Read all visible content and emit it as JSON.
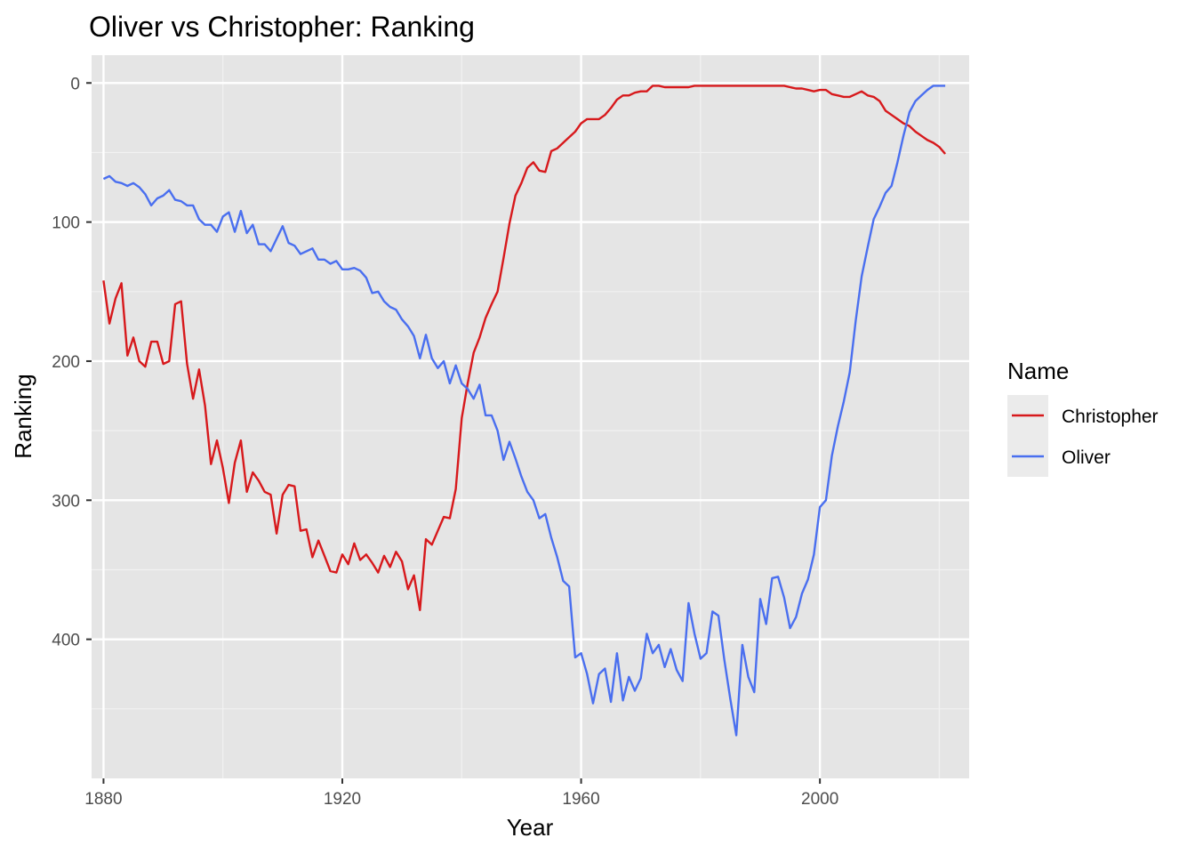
{
  "chart_data": {
    "type": "line",
    "title": "Oliver vs Christopher: Ranking",
    "xlabel": "Year",
    "ylabel": "Ranking",
    "xlim": [
      1878,
      2025
    ],
    "ylim": [
      0,
      490
    ],
    "y_reversed": true,
    "x_ticks": [
      "1880",
      "1920",
      "1960",
      "2000"
    ],
    "y_ticks": [
      "0",
      "100",
      "200",
      "300",
      "400"
    ],
    "grid": true,
    "legend": {
      "title": "Name",
      "position": "right"
    },
    "series": [
      {
        "name": "Christopher",
        "color": "#d7191c",
        "x": [
          1880,
          1881,
          1882,
          1883,
          1884,
          1885,
          1886,
          1887,
          1888,
          1889,
          1890,
          1891,
          1892,
          1893,
          1894,
          1895,
          1896,
          1897,
          1898,
          1899,
          1900,
          1901,
          1902,
          1903,
          1904,
          1905,
          1906,
          1907,
          1908,
          1909,
          1910,
          1911,
          1912,
          1913,
          1914,
          1915,
          1916,
          1917,
          1918,
          1919,
          1920,
          1921,
          1922,
          1923,
          1924,
          1925,
          1926,
          1927,
          1928,
          1929,
          1930,
          1931,
          1932,
          1933,
          1934,
          1935,
          1936,
          1937,
          1938,
          1939,
          1940,
          1941,
          1942,
          1943,
          1944,
          1945,
          1946,
          1947,
          1948,
          1949,
          1950,
          1951,
          1952,
          1953,
          1954,
          1955,
          1956,
          1957,
          1958,
          1959,
          1960,
          1961,
          1962,
          1963,
          1964,
          1965,
          1966,
          1967,
          1968,
          1969,
          1970,
          1971,
          1972,
          1973,
          1974,
          1975,
          1976,
          1977,
          1978,
          1979,
          1980,
          1981,
          1982,
          1983,
          1984,
          1985,
          1986,
          1987,
          1988,
          1989,
          1990,
          1991,
          1992,
          1993,
          1994,
          1995,
          1996,
          1997,
          1998,
          1999,
          2000,
          2001,
          2002,
          2003,
          2004,
          2005,
          2006,
          2007,
          2008,
          2009,
          2010,
          2011,
          2012,
          2013,
          2014,
          2015,
          2016,
          2017,
          2018,
          2019,
          2020,
          2021
        ],
        "y": [
          142,
          173,
          155,
          144,
          196,
          183,
          200,
          204,
          186,
          186,
          202,
          200,
          159,
          157,
          202,
          227,
          206,
          232,
          274,
          257,
          277,
          302,
          273,
          257,
          294,
          280,
          286,
          294,
          296,
          324,
          296,
          289,
          290,
          322,
          321,
          341,
          329,
          340,
          351,
          352,
          339,
          346,
          331,
          343,
          339,
          345,
          352,
          340,
          348,
          337,
          344,
          364,
          354,
          379,
          328,
          332,
          322,
          312,
          313,
          292,
          241,
          216,
          194,
          183,
          169,
          159,
          150,
          126,
          101,
          81,
          72,
          61,
          57,
          63,
          64,
          49,
          47,
          43,
          39,
          35,
          29,
          26,
          26,
          26,
          23,
          18,
          12,
          9,
          9,
          7,
          6,
          6,
          2,
          2,
          3,
          3,
          3,
          3,
          3,
          2,
          2,
          2,
          2,
          2,
          2,
          2,
          2,
          2,
          2,
          2,
          2,
          2,
          2,
          2,
          2,
          3,
          4,
          4,
          5,
          6,
          5,
          5,
          8,
          9,
          10,
          10,
          8,
          6,
          9,
          10,
          13,
          20,
          23,
          26,
          29,
          31,
          35,
          38,
          41,
          43,
          46,
          51
        ]
      },
      {
        "name": "Oliver",
        "color": "#4a6fef",
        "x": [
          1880,
          1881,
          1882,
          1883,
          1884,
          1885,
          1886,
          1887,
          1888,
          1889,
          1890,
          1891,
          1892,
          1893,
          1894,
          1895,
          1896,
          1897,
          1898,
          1899,
          1900,
          1901,
          1902,
          1903,
          1904,
          1905,
          1906,
          1907,
          1908,
          1909,
          1910,
          1911,
          1912,
          1913,
          1914,
          1915,
          1916,
          1917,
          1918,
          1919,
          1920,
          1921,
          1922,
          1923,
          1924,
          1925,
          1926,
          1927,
          1928,
          1929,
          1930,
          1931,
          1932,
          1933,
          1934,
          1935,
          1936,
          1937,
          1938,
          1939,
          1940,
          1941,
          1942,
          1943,
          1944,
          1945,
          1946,
          1947,
          1948,
          1949,
          1950,
          1951,
          1952,
          1953,
          1954,
          1955,
          1956,
          1957,
          1958,
          1959,
          1960,
          1961,
          1962,
          1963,
          1964,
          1965,
          1966,
          1967,
          1968,
          1969,
          1970,
          1971,
          1972,
          1973,
          1974,
          1975,
          1976,
          1977,
          1978,
          1979,
          1980,
          1981,
          1982,
          1983,
          1984,
          1985,
          1986,
          1987,
          1988,
          1989,
          1990,
          1991,
          1992,
          1993,
          1994,
          1995,
          1996,
          1997,
          1998,
          1999,
          2000,
          2001,
          2002,
          2003,
          2004,
          2005,
          2006,
          2007,
          2008,
          2009,
          2010,
          2011,
          2012,
          2013,
          2014,
          2015,
          2016,
          2017,
          2018,
          2019,
          2020,
          2021
        ],
        "y": [
          69,
          67,
          71,
          72,
          74,
          72,
          75,
          80,
          88,
          83,
          81,
          77,
          84,
          85,
          88,
          88,
          98,
          102,
          102,
          107,
          96,
          93,
          107,
          92,
          108,
          102,
          116,
          116,
          121,
          112,
          103,
          115,
          117,
          123,
          121,
          119,
          127,
          127,
          130,
          128,
          134,
          134,
          133,
          135,
          140,
          151,
          150,
          157,
          161,
          163,
          170,
          175,
          182,
          198,
          181,
          198,
          205,
          200,
          216,
          203,
          216,
          220,
          227,
          217,
          239,
          239,
          250,
          271,
          258,
          270,
          283,
          294,
          300,
          313,
          310,
          327,
          341,
          358,
          362,
          413,
          410,
          425,
          446,
          425,
          421,
          445,
          410,
          444,
          427,
          437,
          428,
          396,
          410,
          404,
          420,
          407,
          422,
          430,
          374,
          396,
          414,
          410,
          380,
          383,
          415,
          443,
          469,
          404,
          427,
          438,
          371,
          389,
          356,
          355,
          370,
          392,
          384,
          367,
          357,
          339,
          305,
          300,
          268,
          247,
          229,
          208,
          171,
          139,
          118,
          98,
          89,
          79,
          74,
          57,
          38,
          21,
          13,
          9,
          5,
          2,
          2,
          2
        ]
      }
    ]
  }
}
